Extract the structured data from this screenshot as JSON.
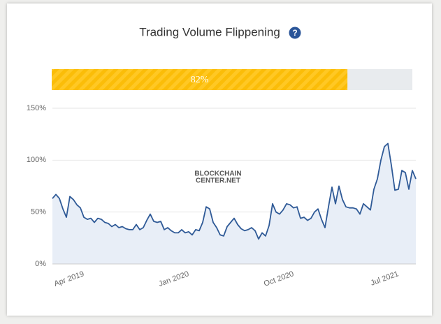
{
  "chart_data": {
    "type": "line",
    "title": "Trading Volume Flippening",
    "progress": {
      "value": 82,
      "label": "82%",
      "max": 100
    },
    "watermark": [
      "BLOCKCHAIN",
      "CENTER.NET"
    ],
    "color": "#2f5a97",
    "fill": "#e8eef7",
    "categories": [
      null,
      null,
      null,
      null,
      null,
      null,
      null,
      null,
      null,
      "Apr 2019",
      null,
      null,
      null,
      null,
      null,
      null,
      null,
      null,
      null,
      null,
      null,
      null,
      null,
      null,
      null,
      null,
      null,
      null,
      null,
      null,
      null,
      null,
      null,
      null,
      null,
      null,
      null,
      null,
      null,
      "Jan 2020",
      null,
      null,
      null,
      null,
      null,
      null,
      null,
      null,
      null,
      null,
      null,
      null,
      null,
      null,
      null,
      null,
      null,
      null,
      null,
      null,
      null,
      null,
      null,
      null,
      null,
      null,
      null,
      null,
      null,
      "Oct 2020",
      null,
      null,
      null,
      null,
      null,
      null,
      null,
      null,
      null,
      null,
      null,
      null,
      null,
      null,
      null,
      null,
      null,
      null,
      null,
      null,
      null,
      null,
      null,
      null,
      null,
      null,
      null,
      null,
      null,
      "Jul 2021",
      null,
      null,
      null,
      null,
      null
    ],
    "values": [
      63,
      67,
      63,
      53,
      45,
      65,
      62,
      57,
      54,
      45,
      43,
      44,
      40,
      44,
      43,
      40,
      39,
      36,
      38,
      35,
      36,
      34,
      33,
      33,
      38,
      33,
      35,
      42,
      48,
      41,
      40,
      41,
      33,
      35,
      32,
      30,
      30,
      33,
      30,
      31,
      28,
      33,
      32,
      40,
      55,
      53,
      40,
      35,
      28,
      27,
      36,
      40,
      44,
      38,
      34,
      32,
      33,
      35,
      32,
      24,
      30,
      27,
      37,
      58,
      50,
      48,
      52,
      58,
      57,
      54,
      55,
      44,
      45,
      42,
      44,
      50,
      53,
      43,
      35,
      55,
      74,
      58,
      75,
      62,
      55,
      54,
      54,
      53,
      48,
      58,
      55,
      52,
      72,
      82,
      100,
      113,
      116,
      95,
      71,
      72,
      90,
      88,
      72,
      90,
      82
    ],
    "ylim": [
      0,
      150
    ],
    "yticks": [
      {
        "value": 0,
        "label": "0%"
      },
      {
        "value": 50,
        "label": "50%"
      },
      {
        "value": 100,
        "label": "100%"
      },
      {
        "value": 150,
        "label": "150%"
      }
    ],
    "grid": true
  }
}
